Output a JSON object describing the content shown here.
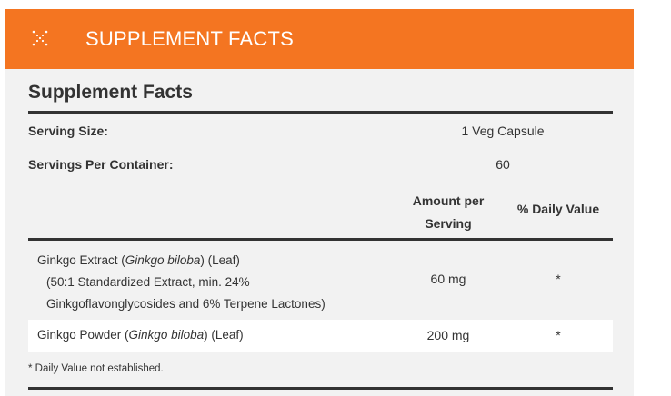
{
  "header": {
    "title": "SUPPLEMENT FACTS",
    "icon": "sparkle-x-icon",
    "color": "#f47521"
  },
  "facts": {
    "title": "Supplement Facts",
    "serving_size_label": "Serving Size:",
    "serving_size_value": "1 Veg Capsule",
    "servings_label": "Servings Per Container:",
    "servings_value": "60",
    "col_amount": "Amount per Serving",
    "col_dv": "% Daily Value",
    "ingredients": [
      {
        "name": "Ginkgo Extract (",
        "latin": "Ginkgo biloba",
        "suffix": ") (Leaf)",
        "detail1": "(50:1 Standardized Extract, min. 24%",
        "detail2": "Ginkgoflavonglycosides and 6% Terpene Lactones)",
        "amount": "60 mg",
        "dv": "*"
      },
      {
        "name": "Ginkgo Powder (",
        "latin": "Ginkgo biloba",
        "suffix": ") (Leaf)",
        "amount": "200 mg",
        "dv": "*"
      }
    ],
    "footnote": "* Daily Value not established."
  }
}
